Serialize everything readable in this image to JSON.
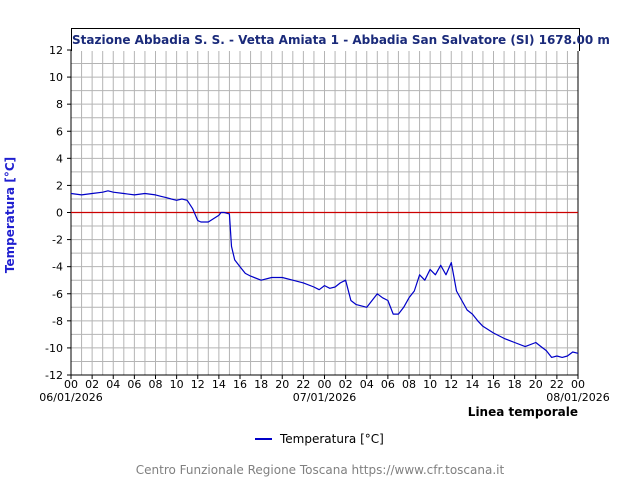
{
  "chart_data": {
    "type": "line",
    "title": "Stazione Abbadia S. S. - Vetta Amiata 1 - Abbadia San Salvatore (SI) 1678.00 m",
    "ylabel": "Temperatura [°C]",
    "xlabel": "Linea temporale",
    "ylim": [
      -12,
      12
    ],
    "y_ticks": [
      12,
      10,
      8,
      6,
      4,
      2,
      0,
      -2,
      -4,
      -6,
      -8,
      -10,
      -12
    ],
    "xlim_hours": [
      0,
      48
    ],
    "x_tick_labels": [
      "00",
      "02",
      "04",
      "06",
      "08",
      "10",
      "12",
      "14",
      "16",
      "18",
      "20",
      "22",
      "00",
      "02",
      "04",
      "06",
      "08",
      "10",
      "12",
      "14",
      "16",
      "18",
      "20",
      "22",
      "00"
    ],
    "date_labels": [
      {
        "text": "06/01/2026",
        "hour": 0
      },
      {
        "text": "07/01/2026",
        "hour": 24
      },
      {
        "text": "08/01/2026",
        "hour": 48
      }
    ],
    "grid": true,
    "reference_line": {
      "y": 0,
      "color": "#cc0000"
    },
    "series": [
      {
        "name": "Temperatura [°C]",
        "color": "#0000c8",
        "x_hours": [
          0,
          1,
          2,
          3,
          3.5,
          4,
          5,
          6,
          7,
          8,
          8.5,
          9,
          9.5,
          10,
          10.5,
          11,
          11.5,
          12,
          12.3,
          13,
          14,
          14.2,
          14.5,
          15,
          15.2,
          15.5,
          16,
          16.5,
          17,
          18,
          19,
          20,
          21,
          22,
          23,
          23.5,
          24,
          24.5,
          25,
          25.5,
          26,
          26.5,
          27,
          27.5,
          28,
          29,
          29.5,
          30,
          30.5,
          31,
          31.5,
          32,
          32.5,
          33,
          33.5,
          34,
          34.5,
          35,
          35.5,
          36,
          36.5,
          37,
          37.5,
          38,
          38.5,
          39,
          40,
          41,
          42,
          43,
          44,
          44.5,
          45,
          45.5,
          46,
          46.5,
          47,
          47.5,
          48
        ],
        "y_values": [
          1.4,
          1.3,
          1.4,
          1.5,
          1.6,
          1.5,
          1.4,
          1.3,
          1.4,
          1.3,
          1.2,
          1.1,
          1.0,
          0.9,
          1.0,
          0.9,
          0.3,
          -0.6,
          -0.7,
          -0.7,
          -0.2,
          0.0,
          0.0,
          -0.1,
          -2.5,
          -3.5,
          -4.0,
          -4.5,
          -4.7,
          -5.0,
          -4.8,
          -4.8,
          -5.0,
          -5.2,
          -5.5,
          -5.7,
          -5.4,
          -5.6,
          -5.5,
          -5.2,
          -5.0,
          -6.5,
          -6.8,
          -6.9,
          -7.0,
          -6.0,
          -6.3,
          -6.5,
          -7.5,
          -7.5,
          -7.0,
          -6.3,
          -5.8,
          -4.6,
          -5.0,
          -4.2,
          -4.6,
          -3.9,
          -4.6,
          -3.7,
          -5.8,
          -6.5,
          -7.2,
          -7.5,
          -8.0,
          -8.4,
          -8.9,
          -9.3,
          -9.6,
          -9.9,
          -9.6,
          -9.9,
          -10.2,
          -10.7,
          -10.6,
          -10.7,
          -10.6,
          -10.3,
          -10.4
        ]
      }
    ]
  },
  "legend": {
    "label": "Temperatura [°C]"
  },
  "footer": {
    "text": "Centro Funzionale Regione Toscana https://www.cfr.toscana.it"
  }
}
